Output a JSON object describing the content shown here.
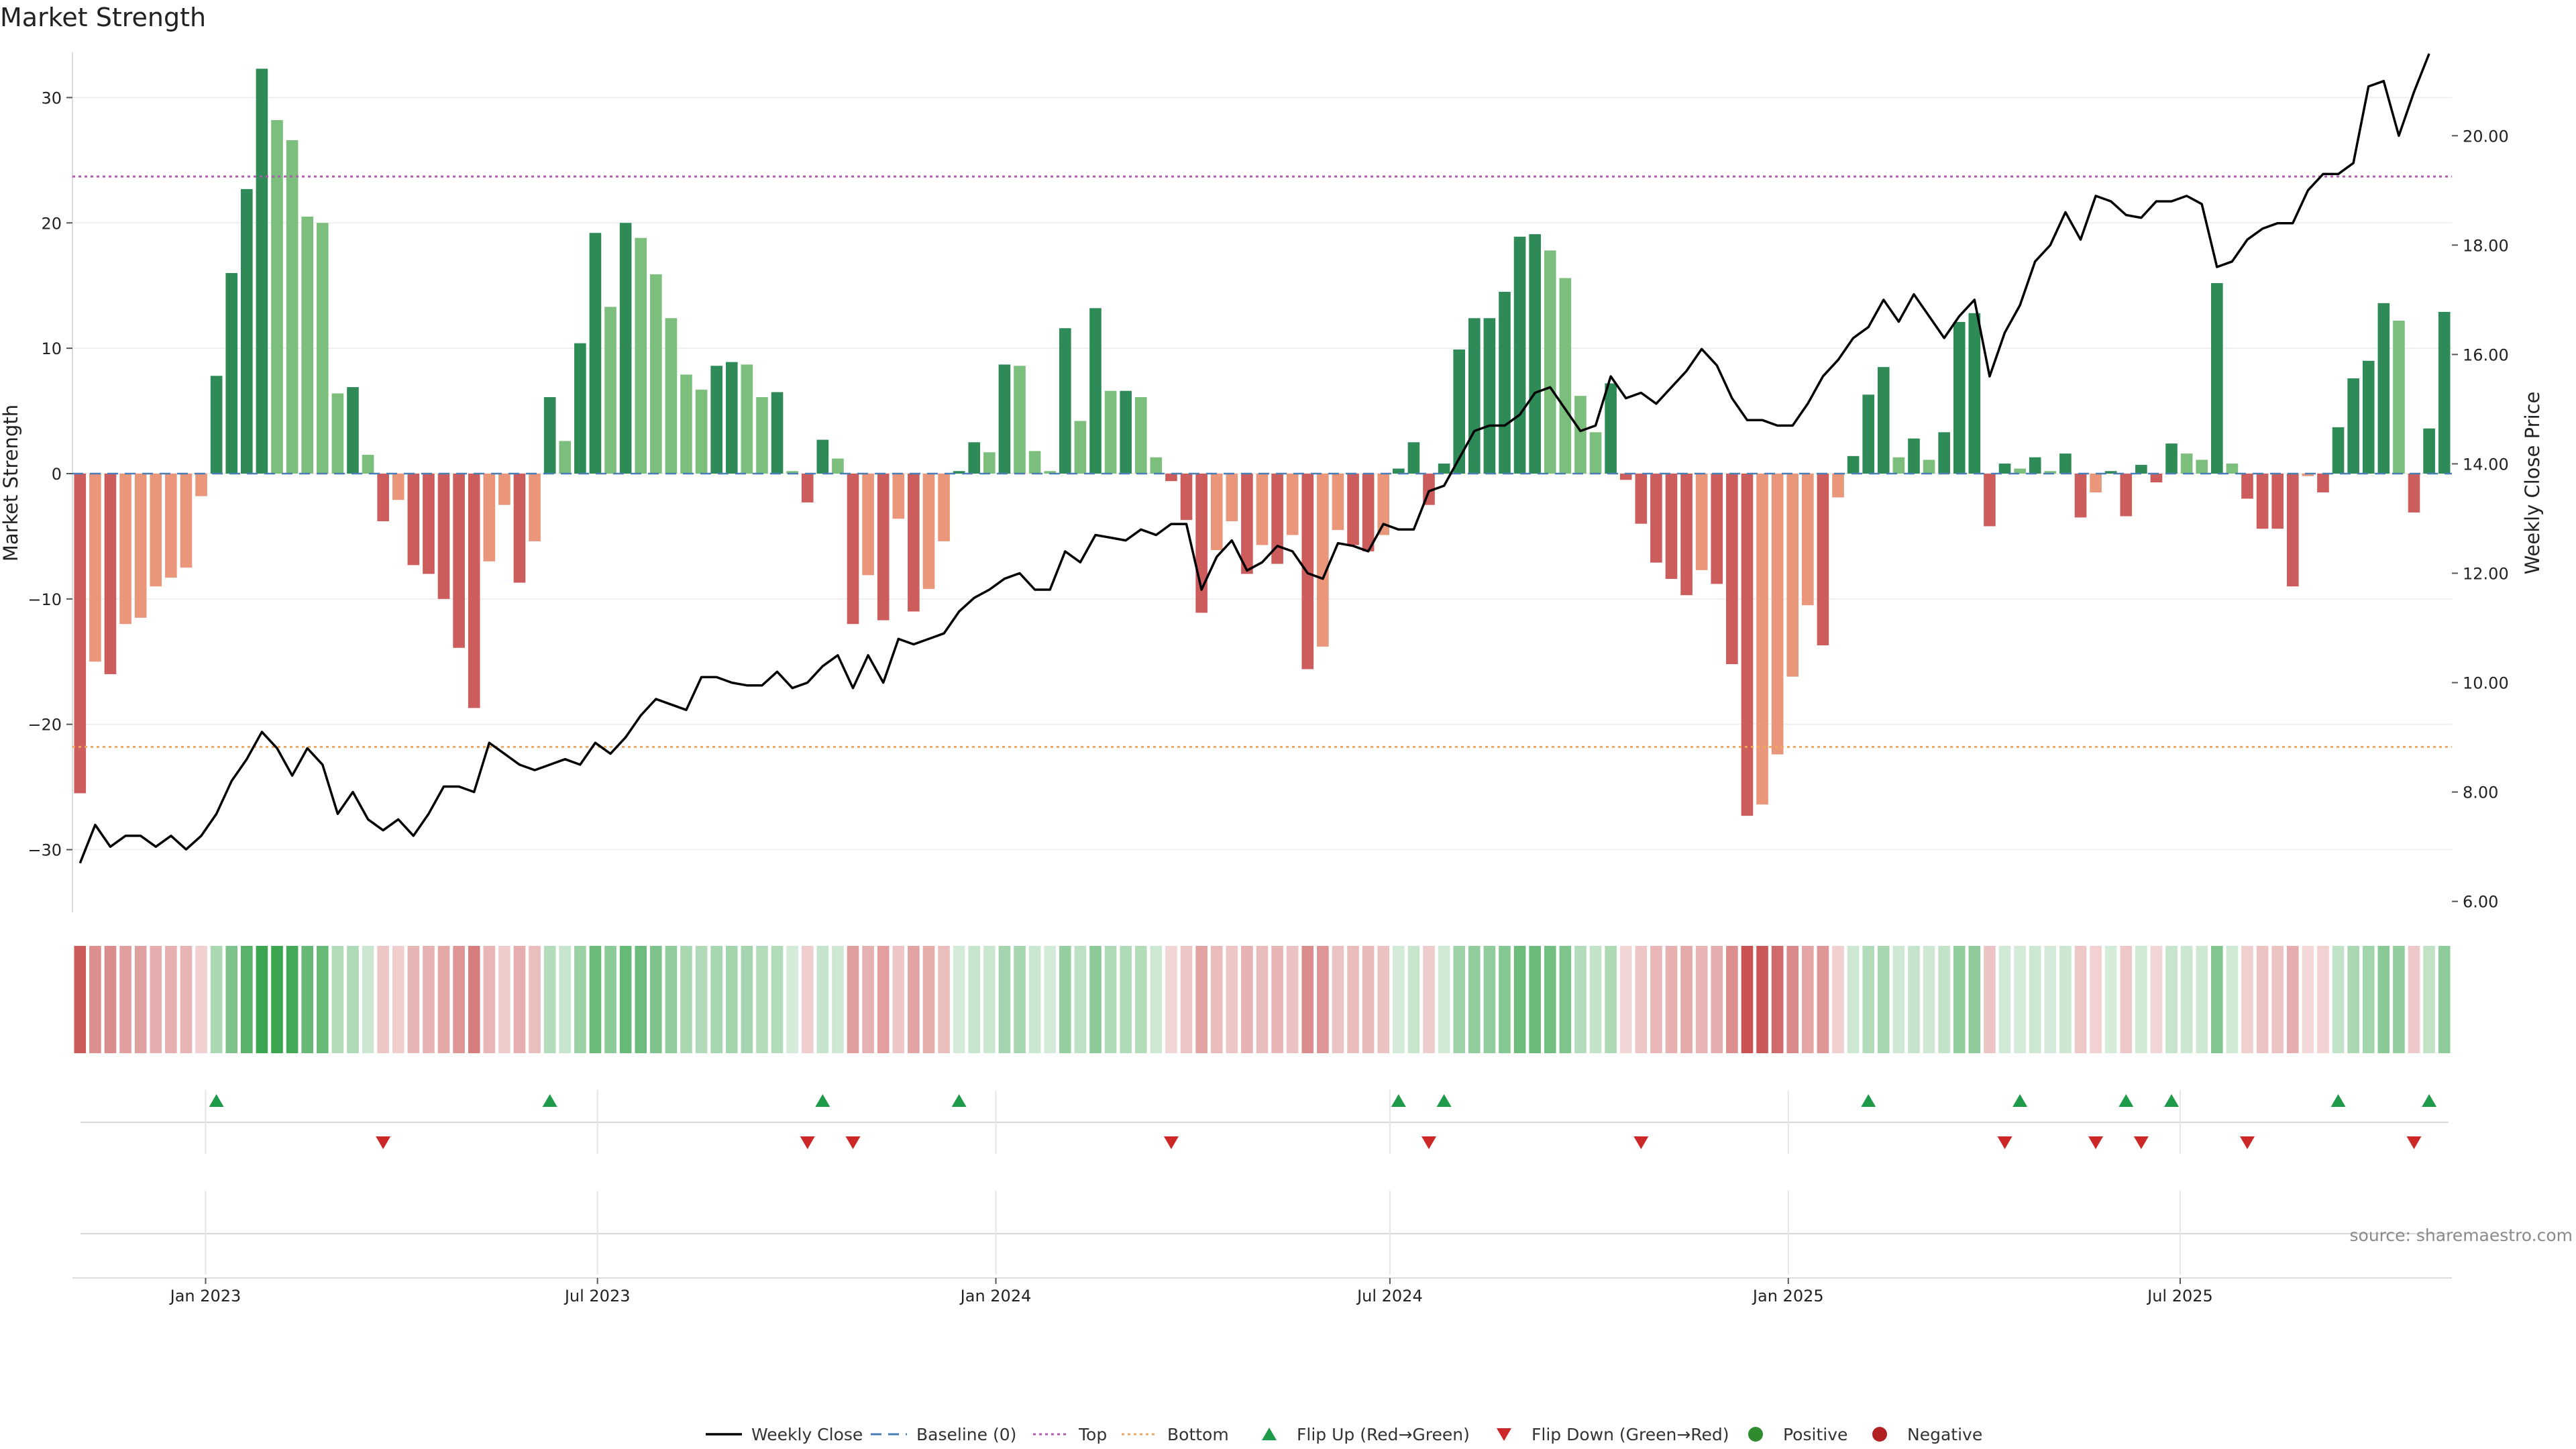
{
  "title": "Market Strength",
  "source": "source: sharemaestro.com",
  "colors": {
    "pos_strong": "#2e8b57",
    "pos_weak": "#7cbf7c",
    "neg_strong": "#cd5c5c",
    "neg_weak": "#e9967a",
    "line": "#000000",
    "top": "#b05bb0",
    "bottom": "#f0a860",
    "baseline": "#4a7fb5",
    "flip_up": "#1f9a4a",
    "flip_down": "#cc2828",
    "positive": "#2e8b2e",
    "negative": "#b22222"
  },
  "chart_data": {
    "type": "bar",
    "start_date": "2022-11-04",
    "ylabel": "Market Strength",
    "ylabel_right": "Weekly Close Price",
    "ylim": [
      -35,
      33.5
    ],
    "ylim_right": [
      5.8,
      21.5
    ],
    "yticks": [
      30,
      20,
      10,
      0,
      -10,
      -20,
      -30
    ],
    "yticks_right": [
      "20.00",
      "18.00",
      "16.00",
      "14.00",
      "12.00",
      "10.00",
      "8.00",
      "6.00"
    ],
    "xticks": [
      {
        "label": "Jan 2023",
        "date": "2023-01-01"
      },
      {
        "label": "Jul 2023",
        "date": "2023-07-01"
      },
      {
        "label": "Jan 2024",
        "date": "2024-01-01"
      },
      {
        "label": "Jul 2024",
        "date": "2024-07-01"
      },
      {
        "label": "Jan 2025",
        "date": "2025-01-01"
      },
      {
        "label": "Jul 2025",
        "date": "2025-07-01"
      }
    ],
    "top_level": 23.7,
    "bottom_level": -21.8,
    "strength": [
      -25.5,
      -15,
      -16,
      -12,
      -11.5,
      -9,
      -8.3,
      -7.5,
      -1.8,
      7.8,
      16,
      22.7,
      32.3,
      28.2,
      26.6,
      20.5,
      20,
      6.4,
      6.9,
      1.5,
      -3.8,
      -2.1,
      -7.3,
      -8,
      -10,
      -13.9,
      -18.7,
      -7,
      -2.5,
      -8.7,
      -5.4,
      6.1,
      2.6,
      10.4,
      19.2,
      13.3,
      20,
      18.8,
      15.9,
      12.4,
      7.9,
      6.7,
      8.6,
      8.9,
      8.7,
      6.1,
      6.5,
      0.2,
      -2.3,
      2.7,
      1.2,
      -12,
      -8.1,
      -11.7,
      -3.6,
      -11,
      -9.2,
      -5.4,
      0.2,
      2.5,
      1.7,
      8.7,
      8.6,
      1.8,
      0.2,
      11.6,
      4.2,
      13.2,
      6.6,
      6.6,
      6.1,
      1.3,
      -0.6,
      -3.7,
      -11.1,
      -6.1,
      -3.8,
      -8,
      -5.7,
      -7.2,
      -4.9,
      -15.6,
      -13.8,
      -4.5,
      -5.7,
      -6.2,
      -4.9,
      0.4,
      2.5,
      -2.5,
      0.8,
      9.9,
      12.4,
      12.4,
      14.5,
      18.9,
      19.1,
      17.8,
      15.6,
      6.2,
      3.3,
      7.2,
      -0.5,
      -4,
      -7.1,
      -8.4,
      -9.7,
      -7.7,
      -8.8,
      -15.2,
      -27.3,
      -26.4,
      -22.4,
      -16.2,
      -10.5,
      -13.7,
      -1.9,
      1.4,
      6.3,
      8.5,
      1.3,
      2.8,
      1.1,
      3.3,
      12.1,
      12.8,
      -4.2,
      0.8,
      0.4,
      1.3,
      0.2,
      1.6,
      -3.5,
      -1.5,
      0.2,
      -3.4,
      0.7,
      -0.7,
      2.4,
      1.6,
      1.1,
      15.2,
      0.8,
      -2,
      -4.4,
      -4.4,
      -9,
      -0.2,
      -1.5,
      3.7,
      7.6,
      9,
      13.6,
      12.2,
      -3.1,
      3.6,
      12.9
    ],
    "price": [
      6.7,
      7.4,
      7.0,
      7.2,
      7.2,
      7.0,
      7.2,
      6.95,
      7.2,
      7.6,
      8.2,
      8.6,
      9.1,
      8.8,
      8.3,
      8.8,
      8.5,
      7.6,
      8.0,
      7.5,
      7.3,
      7.5,
      7.2,
      7.6,
      8.1,
      8.1,
      8.0,
      8.9,
      8.7,
      8.5,
      8.4,
      8.5,
      8.6,
      8.5,
      8.9,
      8.7,
      9.0,
      9.4,
      9.7,
      9.6,
      9.5,
      10.1,
      10.1,
      10.0,
      9.95,
      9.95,
      10.2,
      9.9,
      10.0,
      10.3,
      10.5,
      9.9,
      10.5,
      10.0,
      10.8,
      10.7,
      10.8,
      10.9,
      11.3,
      11.55,
      11.7,
      11.9,
      12.0,
      11.7,
      11.7,
      12.4,
      12.2,
      12.7,
      12.65,
      12.6,
      12.8,
      12.7,
      12.9,
      12.9,
      11.7,
      12.3,
      12.6,
      12.05,
      12.2,
      12.5,
      12.4,
      12.0,
      11.9,
      12.55,
      12.5,
      12.4,
      12.9,
      12.8,
      12.8,
      13.5,
      13.6,
      14.1,
      14.6,
      14.7,
      14.7,
      14.9,
      15.3,
      15.4,
      15.0,
      14.6,
      14.7,
      15.6,
      15.2,
      15.3,
      15.1,
      15.4,
      15.7,
      16.1,
      15.8,
      15.2,
      14.8,
      14.8,
      14.7,
      14.7,
      15.1,
      15.6,
      15.9,
      16.3,
      16.5,
      17.0,
      16.6,
      17.1,
      16.7,
      16.3,
      16.7,
      17.0,
      15.6,
      16.4,
      16.9,
      17.7,
      18.0,
      18.6,
      18.1,
      18.9,
      18.8,
      18.55,
      18.5,
      18.8,
      18.8,
      18.9,
      18.75,
      17.6,
      17.7,
      18.1,
      18.3,
      18.4,
      18.4,
      19.0,
      19.3,
      19.3,
      19.5,
      20.9,
      21.0,
      20.0,
      20.8,
      21.5
    ],
    "flips_up": [
      9,
      31,
      49,
      58,
      87,
      90,
      118,
      128,
      135,
      138,
      149,
      155
    ],
    "flips_down": [
      20,
      48,
      51,
      72,
      89,
      103,
      127,
      133,
      136,
      143,
      154
    ]
  },
  "legend": [
    {
      "label": "Weekly Close",
      "icon": "line-solid"
    },
    {
      "label": "Baseline (0)",
      "icon": "line-dashed"
    },
    {
      "label": "Top",
      "icon": "line-dotted-purple"
    },
    {
      "label": "Bottom",
      "icon": "line-dotted-orange"
    },
    {
      "label": "Flip Up (Red→Green)",
      "icon": "triangle-up"
    },
    {
      "label": "Flip Down (Green→Red)",
      "icon": "triangle-down"
    },
    {
      "label": "Positive",
      "icon": "circle-green"
    },
    {
      "label": "Negative",
      "icon": "circle-red"
    }
  ]
}
